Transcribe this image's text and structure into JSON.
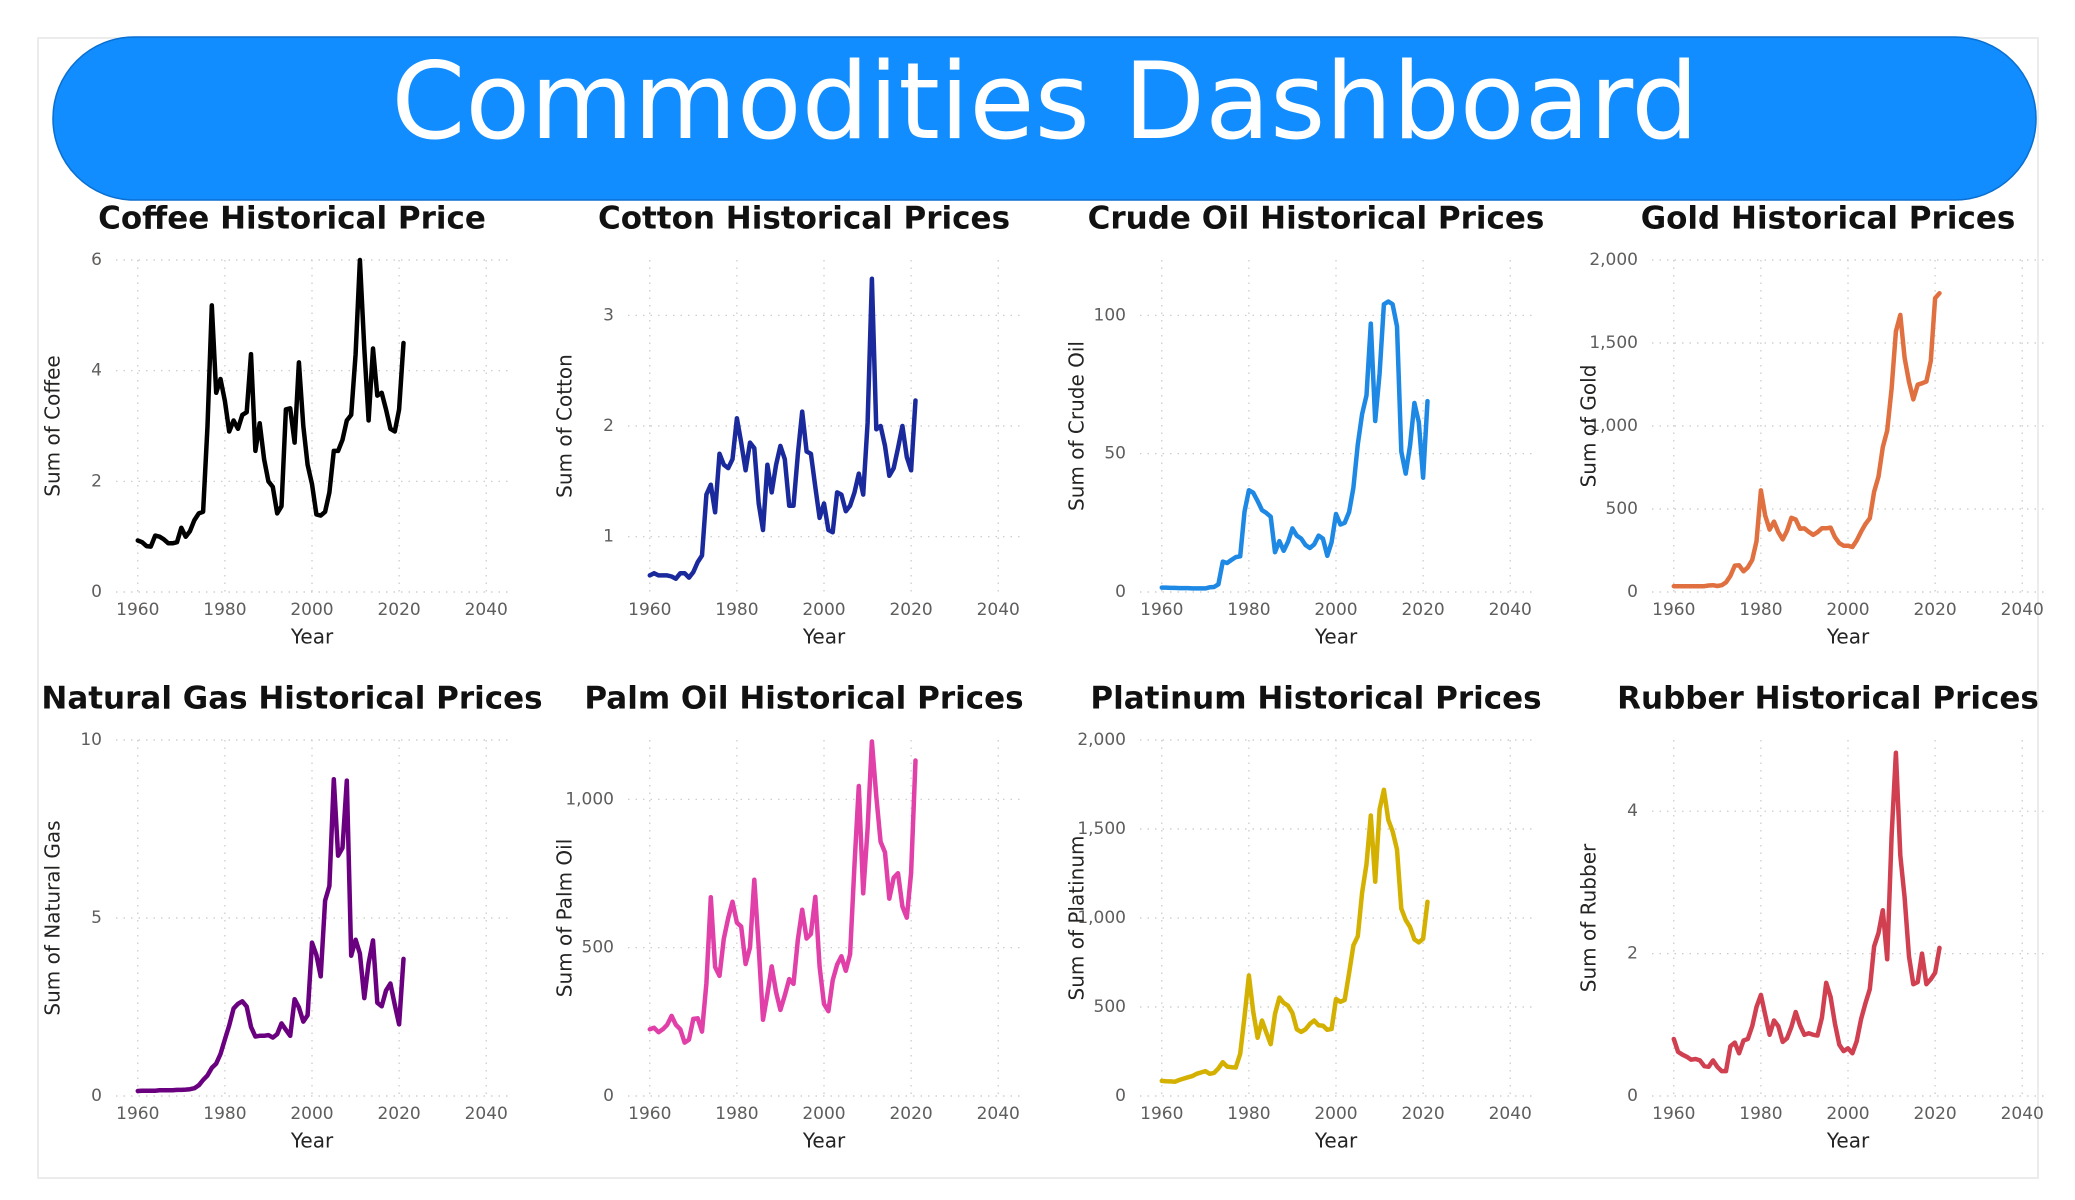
{
  "title": "Commodities Dashboard",
  "chart_data": [
    {
      "type": "line",
      "title": "Coffee Historical Price",
      "xlabel": "Year",
      "ylabel": "Sum of Coffee",
      "color": "#000000",
      "x": [
        1960,
        1961,
        1962,
        1963,
        1964,
        1965,
        1966,
        1967,
        1968,
        1969,
        1970,
        1971,
        1972,
        1973,
        1974,
        1975,
        1976,
        1977,
        1978,
        1979,
        1980,
        1981,
        1982,
        1983,
        1984,
        1985,
        1986,
        1987,
        1988,
        1989,
        1990,
        1991,
        1992,
        1993,
        1994,
        1995,
        1996,
        1997,
        1998,
        1999,
        2000,
        2001,
        2002,
        2003,
        2004,
        2005,
        2006,
        2007,
        2008,
        2009,
        2010,
        2011,
        2012,
        2013,
        2014,
        2015,
        2016,
        2017,
        2018,
        2019,
        2020,
        2021
      ],
      "values": [
        0.93,
        0.9,
        0.83,
        0.82,
        1.02,
        1.0,
        0.95,
        0.88,
        0.88,
        0.9,
        1.16,
        1.0,
        1.1,
        1.3,
        1.42,
        1.45,
        3.0,
        5.18,
        3.6,
        3.85,
        3.45,
        2.9,
        3.1,
        2.95,
        3.2,
        3.25,
        4.3,
        2.55,
        3.05,
        2.4,
        2.0,
        1.9,
        1.42,
        1.55,
        3.3,
        3.32,
        2.7,
        4.15,
        3.0,
        2.3,
        1.95,
        1.4,
        1.38,
        1.45,
        1.8,
        2.55,
        2.55,
        2.75,
        3.1,
        3.2,
        4.3,
        6.0,
        4.4,
        3.1,
        4.4,
        3.55,
        3.6,
        3.3,
        2.95,
        2.9,
        3.3,
        4.5
      ],
      "xlim": [
        1955,
        2045
      ],
      "xticks": [
        1960,
        1980,
        2000,
        2020,
        2040
      ],
      "ylim": [
        0,
        6
      ],
      "yticks": [
        0,
        2,
        4,
        6
      ],
      "grid": true
    },
    {
      "type": "line",
      "title": "Cotton Historical Prices",
      "xlabel": "Year",
      "ylabel": "Sum of Cotton",
      "color": "#1a2a9c",
      "x": [
        1960,
        1961,
        1962,
        1963,
        1964,
        1965,
        1966,
        1967,
        1968,
        1969,
        1970,
        1971,
        1972,
        1973,
        1974,
        1975,
        1976,
        1977,
        1978,
        1979,
        1980,
        1981,
        1982,
        1983,
        1984,
        1985,
        1986,
        1987,
        1988,
        1989,
        1990,
        1991,
        1992,
        1993,
        1994,
        1995,
        1996,
        1997,
        1998,
        1999,
        2000,
        2001,
        2002,
        2003,
        2004,
        2005,
        2006,
        2007,
        2008,
        2009,
        2010,
        2011,
        2012,
        2013,
        2014,
        2015,
        2016,
        2017,
        2018,
        2019,
        2020,
        2021
      ],
      "values": [
        0.65,
        0.67,
        0.65,
        0.65,
        0.65,
        0.64,
        0.62,
        0.67,
        0.67,
        0.63,
        0.68,
        0.77,
        0.83,
        1.38,
        1.47,
        1.22,
        1.75,
        1.65,
        1.62,
        1.7,
        2.07,
        1.85,
        1.6,
        1.85,
        1.8,
        1.3,
        1.06,
        1.65,
        1.4,
        1.65,
        1.82,
        1.7,
        1.28,
        1.28,
        1.75,
        2.13,
        1.77,
        1.75,
        1.45,
        1.17,
        1.3,
        1.06,
        1.04,
        1.4,
        1.38,
        1.23,
        1.28,
        1.4,
        1.57,
        1.38,
        2.03,
        3.33,
        1.97,
        2.0,
        1.82,
        1.55,
        1.62,
        1.8,
        2.0,
        1.72,
        1.6,
        2.23
      ],
      "xlim": [
        1955,
        2045
      ],
      "xticks": [
        1960,
        1980,
        2000,
        2020,
        2040
      ],
      "ylim": [
        0.5,
        3.5
      ],
      "yticks": [
        1,
        2,
        3
      ],
      "grid": true
    },
    {
      "type": "line",
      "title": "Crude Oil Historical Prices",
      "xlabel": "Year",
      "ylabel": "Sum of Crude Oil",
      "color": "#1e88e5",
      "x": [
        1960,
        1961,
        1962,
        1963,
        1964,
        1965,
        1966,
        1967,
        1968,
        1969,
        1970,
        1971,
        1972,
        1973,
        1974,
        1975,
        1976,
        1977,
        1978,
        1979,
        1980,
        1981,
        1982,
        1983,
        1984,
        1985,
        1986,
        1987,
        1988,
        1989,
        1990,
        1991,
        1992,
        1993,
        1994,
        1995,
        1996,
        1997,
        1998,
        1999,
        2000,
        2001,
        2002,
        2003,
        2004,
        2005,
        2006,
        2007,
        2008,
        2009,
        2010,
        2011,
        2012,
        2013,
        2014,
        2015,
        2016,
        2017,
        2018,
        2019,
        2020,
        2021
      ],
      "values": [
        1.6,
        1.6,
        1.5,
        1.5,
        1.4,
        1.4,
        1.4,
        1.3,
        1.3,
        1.3,
        1.3,
        1.7,
        1.8,
        2.8,
        11,
        10.5,
        11.6,
        12.6,
        12.9,
        29,
        36.8,
        35.9,
        32.9,
        29.6,
        28.6,
        27.2,
        14.4,
        18.4,
        14.9,
        18.2,
        23,
        20.4,
        19.3,
        17,
        15.9,
        17.2,
        20.4,
        19.3,
        13.1,
        18,
        28.2,
        24.4,
        25,
        28.9,
        37.7,
        53.4,
        64.3,
        71.1,
        97,
        61.8,
        79,
        104,
        105,
        104,
        96,
        50.8,
        42.8,
        52.8,
        68.3,
        61.4,
        41.3,
        69
      ],
      "xlim": [
        1955,
        2045
      ],
      "xticks": [
        1960,
        1980,
        2000,
        2020,
        2040
      ],
      "ylim": [
        0,
        120
      ],
      "yticks": [
        0,
        50,
        100
      ],
      "grid": true
    },
    {
      "type": "line",
      "title": "Gold Historical Prices",
      "xlabel": "Year",
      "ylabel": "Sum of Gold",
      "color": "#e07040",
      "x": [
        1960,
        1961,
        1962,
        1963,
        1964,
        1965,
        1966,
        1967,
        1968,
        1969,
        1970,
        1971,
        1972,
        1973,
        1974,
        1975,
        1976,
        1977,
        1978,
        1979,
        1980,
        1981,
        1982,
        1983,
        1984,
        1985,
        1986,
        1987,
        1988,
        1989,
        1990,
        1991,
        1992,
        1993,
        1994,
        1995,
        1996,
        1997,
        1998,
        1999,
        2000,
        2001,
        2002,
        2003,
        2004,
        2005,
        2006,
        2007,
        2008,
        2009,
        2010,
        2011,
        2012,
        2013,
        2014,
        2015,
        2016,
        2017,
        2018,
        2019,
        2020,
        2021
      ],
      "values": [
        35,
        35,
        35,
        35,
        35,
        35,
        35,
        35,
        39,
        41,
        36,
        41,
        58,
        97,
        159,
        161,
        125,
        148,
        193,
        306,
        612,
        460,
        376,
        424,
        361,
        317,
        368,
        447,
        437,
        381,
        383,
        362,
        344,
        360,
        384,
        384,
        388,
        331,
        294,
        279,
        279,
        271,
        310,
        363,
        409,
        444,
        603,
        695,
        872,
        972,
        1225,
        1569,
        1669,
        1411,
        1266,
        1160,
        1249,
        1257,
        1268,
        1393,
        1770,
        1800
      ],
      "xlim": [
        1955,
        2045
      ],
      "xticks": [
        1960,
        1980,
        2000,
        2020,
        2040
      ],
      "ylim": [
        0,
        2000
      ],
      "yticks": [
        0,
        500,
        {
          "value": 1000,
          "label": "1,000"
        },
        {
          "value": 1500,
          "label": "1,500"
        },
        {
          "value": 2000,
          "label": "2,000"
        }
      ],
      "grid": true
    },
    {
      "type": "line",
      "title": "Natural Gas Historical Prices",
      "xlabel": "Year",
      "ylabel": "Sum of Natural Gas",
      "color": "#6a0080",
      "x": [
        1960,
        1961,
        1962,
        1963,
        1964,
        1965,
        1966,
        1967,
        1968,
        1969,
        1970,
        1971,
        1972,
        1973,
        1974,
        1975,
        1976,
        1977,
        1978,
        1979,
        1980,
        1981,
        1982,
        1983,
        1984,
        1985,
        1986,
        1987,
        1988,
        1989,
        1990,
        1991,
        1992,
        1993,
        1994,
        1995,
        1996,
        1997,
        1998,
        1999,
        2000,
        2001,
        2002,
        2003,
        2004,
        2005,
        2006,
        2007,
        2008,
        2009,
        2010,
        2011,
        2012,
        2013,
        2014,
        2015,
        2016,
        2017,
        2018,
        2019,
        2020,
        2021
      ],
      "values": [
        0.14,
        0.15,
        0.15,
        0.15,
        0.15,
        0.16,
        0.16,
        0.16,
        0.16,
        0.17,
        0.17,
        0.18,
        0.19,
        0.22,
        0.3,
        0.45,
        0.58,
        0.79,
        0.91,
        1.18,
        1.59,
        1.98,
        2.46,
        2.59,
        2.66,
        2.51,
        1.94,
        1.67,
        1.69,
        1.69,
        1.71,
        1.64,
        1.74,
        2.04,
        1.86,
        1.69,
        2.72,
        2.49,
        2.09,
        2.27,
        4.31,
        3.96,
        3.36,
        5.49,
        5.9,
        8.9,
        6.75,
        6.97,
        8.86,
        3.94,
        4.39,
        4.0,
        2.75,
        3.73,
        4.37,
        2.62,
        2.52,
        2.96,
        3.16,
        2.56,
        2.01,
        3.85
      ],
      "xlim": [
        1955,
        2045
      ],
      "xticks": [
        1960,
        1980,
        2000,
        2020,
        2040
      ],
      "ylim": [
        0,
        10
      ],
      "yticks": [
        0,
        5,
        10
      ],
      "grid": true
    },
    {
      "type": "line",
      "title": "Palm Oil Historical Prices",
      "xlabel": "Year",
      "ylabel": "Sum of Palm Oil",
      "color": "#e040a8",
      "x": [
        1960,
        1961,
        1962,
        1963,
        1964,
        1965,
        1966,
        1967,
        1968,
        1969,
        1970,
        1971,
        1972,
        1973,
        1974,
        1975,
        1976,
        1977,
        1978,
        1979,
        1980,
        1981,
        1982,
        1983,
        1984,
        1985,
        1986,
        1987,
        1988,
        1989,
        1990,
        1991,
        1992,
        1993,
        1994,
        1995,
        1996,
        1997,
        1998,
        1999,
        2000,
        2001,
        2002,
        2003,
        2004,
        2005,
        2006,
        2007,
        2008,
        2009,
        2010,
        2011,
        2012,
        2013,
        2014,
        2015,
        2016,
        2017,
        2018,
        2019,
        2020,
        2021
      ],
      "values": [
        225,
        230,
        215,
        225,
        240,
        270,
        240,
        225,
        180,
        190,
        260,
        262,
        217,
        380,
        670,
        435,
        405,
        530,
        600,
        655,
        584,
        571,
        445,
        501,
        729,
        501,
        257,
        343,
        437,
        350,
        290,
        339,
        394,
        378,
        528,
        628,
        531,
        546,
        671,
        436,
        310,
        286,
        390,
        443,
        471,
        422,
        478,
        780,
        1045,
        683,
        901,
        1195,
        1010,
        857,
        821,
        665,
        736,
        751,
        639,
        601,
        752,
        1131
      ],
      "xlim": [
        1955,
        2045
      ],
      "xticks": [
        1960,
        1980,
        2000,
        2020,
        2040
      ],
      "ylim": [
        0,
        1200
      ],
      "yticks": [
        0,
        500,
        {
          "value": 1000,
          "label": "1,000"
        }
      ],
      "grid": true
    },
    {
      "type": "line",
      "title": "Platinum Historical Prices",
      "xlabel": "Year",
      "ylabel": "Sum of Platinum",
      "color": "#d4b000",
      "x": [
        1960,
        1961,
        1962,
        1963,
        1964,
        1965,
        1966,
        1967,
        1968,
        1969,
        1970,
        1971,
        1972,
        1973,
        1974,
        1975,
        1976,
        1977,
        1978,
        1979,
        1980,
        1981,
        1982,
        1983,
        1984,
        1985,
        1986,
        1987,
        1988,
        1989,
        1990,
        1991,
        1992,
        1993,
        1994,
        1995,
        1996,
        1997,
        1998,
        1999,
        2000,
        2001,
        2002,
        2003,
        2004,
        2005,
        2006,
        2007,
        2008,
        2009,
        2010,
        2011,
        2012,
        2013,
        2014,
        2015,
        2016,
        2017,
        2018,
        2019,
        2020,
        2021
      ],
      "values": [
        85,
        83,
        82,
        80,
        90,
        98,
        105,
        112,
        125,
        132,
        140,
        125,
        130,
        155,
        190,
        165,
        162,
        160,
        237,
        445,
        677,
        475,
        327,
        424,
        357,
        291,
        461,
        553,
        523,
        507,
        467,
        375,
        360,
        375,
        405,
        424,
        397,
        395,
        372,
        377,
        545,
        529,
        540,
        691,
        846,
        897,
        1142,
        1303,
        1576,
        1204,
        1610,
        1720,
        1551,
        1487,
        1385,
        1053,
        989,
        950,
        880,
        863,
        883,
        1091
      ],
      "xlim": [
        1955,
        2045
      ],
      "xticks": [
        1960,
        1980,
        2000,
        2020,
        2040
      ],
      "ylim": [
        0,
        2000
      ],
      "yticks": [
        0,
        500,
        {
          "value": 1000,
          "label": "1,000"
        },
        {
          "value": 1500,
          "label": "1,500"
        },
        {
          "value": 2000,
          "label": "2,000"
        }
      ],
      "grid": true
    },
    {
      "type": "line",
      "title": "Rubber Historical Prices",
      "xlabel": "Year",
      "ylabel": "Sum of Rubber",
      "color": "#d04050",
      "x": [
        1960,
        1961,
        1962,
        1963,
        1964,
        1965,
        1966,
        1967,
        1968,
        1969,
        1970,
        1971,
        1972,
        1973,
        1974,
        1975,
        1976,
        1977,
        1978,
        1979,
        1980,
        1981,
        1982,
        1983,
        1984,
        1985,
        1986,
        1987,
        1988,
        1989,
        1990,
        1991,
        1992,
        1993,
        1994,
        1995,
        1996,
        1997,
        1998,
        1999,
        2000,
        2001,
        2002,
        2003,
        2004,
        2005,
        2006,
        2007,
        2008,
        2009,
        2010,
        2011,
        2012,
        2013,
        2014,
        2015,
        2016,
        2017,
        2018,
        2019,
        2020,
        2021
      ],
      "values": [
        0.8,
        0.62,
        0.58,
        0.55,
        0.51,
        0.52,
        0.5,
        0.42,
        0.41,
        0.5,
        0.41,
        0.35,
        0.35,
        0.7,
        0.75,
        0.6,
        0.78,
        0.8,
        0.98,
        1.25,
        1.42,
        1.14,
        0.86,
        1.06,
        0.98,
        0.76,
        0.81,
        0.97,
        1.18,
        0.99,
        0.86,
        0.88,
        0.86,
        0.85,
        1.1,
        1.59,
        1.39,
        1.02,
        0.72,
        0.63,
        0.67,
        0.6,
        0.77,
        1.08,
        1.3,
        1.5,
        2.1,
        2.29,
        2.61,
        1.92,
        3.65,
        4.82,
        3.38,
        2.79,
        1.96,
        1.57,
        1.6,
        2.0,
        1.57,
        1.64,
        1.73,
        2.08
      ],
      "xlim": [
        1955,
        2045
      ],
      "xticks": [
        1960,
        1980,
        2000,
        2020,
        2040
      ],
      "ylim": [
        0,
        5
      ],
      "yticks": [
        0,
        2,
        4
      ],
      "grid": true
    }
  ]
}
